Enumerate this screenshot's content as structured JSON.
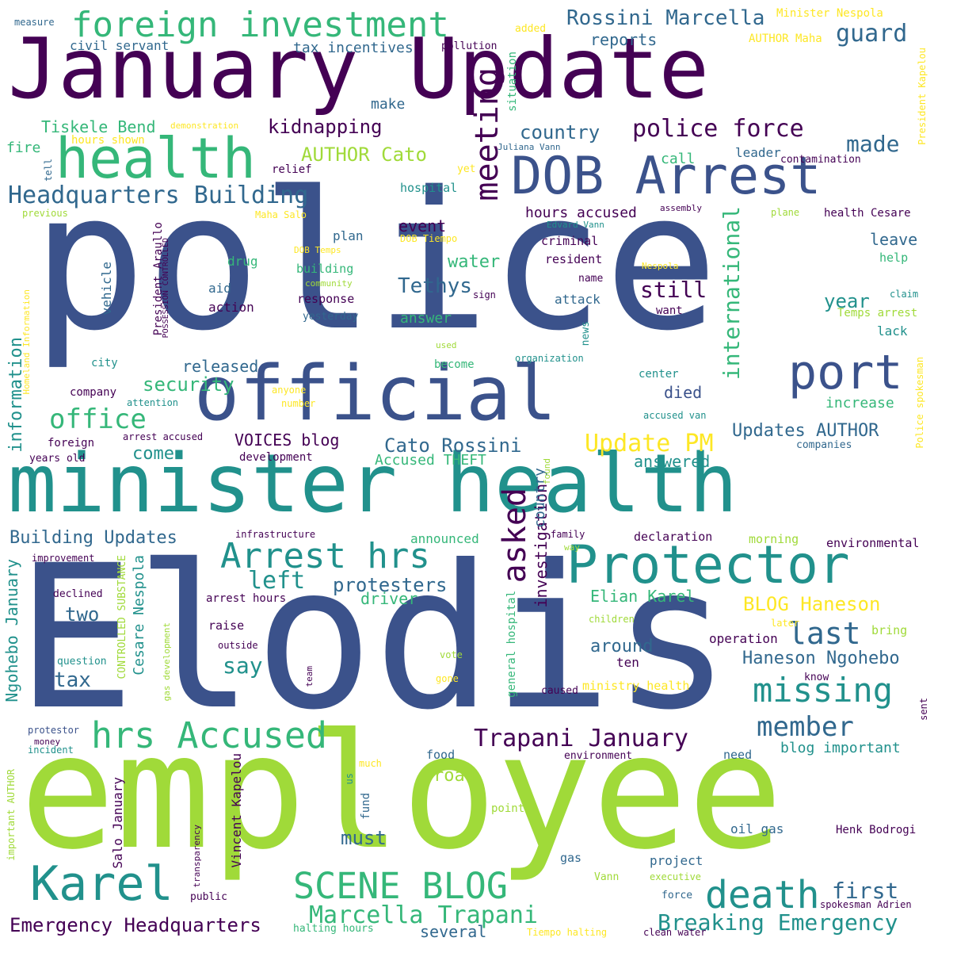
{
  "palette": {
    "deep_purple": "#440154",
    "indigo": "#3b528b",
    "blue": "#31688e",
    "teal": "#21918c",
    "green": "#35b779",
    "lime": "#a0da39",
    "yellow": "#fde725"
  },
  "words": [
    {
      "text": "police",
      "color": "#3b528b"
    },
    {
      "text": "Elodis",
      "color": "#3b528b"
    },
    {
      "text": "employee",
      "color": "#a0da39"
    },
    {
      "text": "January Update",
      "color": "#440154"
    },
    {
      "text": "minister health",
      "color": "#21918c"
    },
    {
      "text": "official",
      "color": "#3b528b"
    },
    {
      "text": "DOB Arrest",
      "color": "#3b528b"
    },
    {
      "text": "health",
      "color": "#35b779"
    },
    {
      "text": "Protector",
      "color": "#21918c"
    },
    {
      "text": "foreign investment",
      "color": "#35b779"
    },
    {
      "text": "port",
      "color": "#3b528b"
    },
    {
      "text": "Karel",
      "color": "#21918c"
    },
    {
      "text": "hrs Accused",
      "color": "#35b779"
    },
    {
      "text": "death",
      "color": "#21918c"
    },
    {
      "text": "SCENE BLOG",
      "color": "#35b779"
    },
    {
      "text": "missing",
      "color": "#21918c"
    },
    {
      "text": "Arrest hrs",
      "color": "#21918c"
    },
    {
      "text": "meeting",
      "color": "#440154"
    },
    {
      "text": "asked",
      "color": "#440154"
    },
    {
      "text": "international",
      "color": "#35b779"
    },
    {
      "text": "office",
      "color": "#35b779"
    },
    {
      "text": "Headquarters Building",
      "color": "#31688e"
    },
    {
      "text": "police force",
      "color": "#440154"
    },
    {
      "text": "Rossini Marcella",
      "color": "#31688e"
    },
    {
      "text": "guard",
      "color": "#31688e"
    },
    {
      "text": "member",
      "color": "#31688e"
    },
    {
      "text": "last",
      "color": "#31688e"
    },
    {
      "text": "Trapani January",
      "color": "#440154"
    },
    {
      "text": "Marcella Trapani",
      "color": "#35b779"
    },
    {
      "text": "Breaking Emergency",
      "color": "#21918c"
    },
    {
      "text": "Emergency Headquarters",
      "color": "#440154"
    },
    {
      "text": "first",
      "color": "#31688e"
    },
    {
      "text": "Update PM",
      "color": "#fde725"
    },
    {
      "text": "Haneson Ngohebo",
      "color": "#31688e"
    },
    {
      "text": "BLOG Haneson",
      "color": "#fde725"
    },
    {
      "text": "Cato Rossini",
      "color": "#31688e"
    },
    {
      "text": "VOICES blog",
      "color": "#440154"
    },
    {
      "text": "Updates AUTHOR",
      "color": "#31688e"
    },
    {
      "text": "left",
      "color": "#21918c"
    },
    {
      "text": "protesters",
      "color": "#31688e"
    },
    {
      "text": "security",
      "color": "#35b779"
    },
    {
      "text": "Building Updates",
      "color": "#31688e"
    },
    {
      "text": "information",
      "color": "#21918c"
    },
    {
      "text": "Ngohebo January",
      "color": "#21918c"
    },
    {
      "text": "Tethys",
      "color": "#31688e"
    },
    {
      "text": "still",
      "color": "#440154"
    },
    {
      "text": "year",
      "color": "#21918c"
    },
    {
      "text": "made",
      "color": "#31688e"
    },
    {
      "text": "country",
      "color": "#31688e"
    },
    {
      "text": "kidnapping",
      "color": "#440154"
    },
    {
      "text": "AUTHOR Cato",
      "color": "#a0da39"
    },
    {
      "text": "Tiskele Bend",
      "color": "#35b779"
    },
    {
      "text": "tax incentives",
      "color": "#31688e"
    },
    {
      "text": "reports",
      "color": "#31688e"
    },
    {
      "text": "water",
      "color": "#35b779"
    },
    {
      "text": "event",
      "color": "#440154"
    },
    {
      "text": "hours accused",
      "color": "#440154"
    },
    {
      "text": "died",
      "color": "#3b528b"
    },
    {
      "text": "increase",
      "color": "#35b779"
    },
    {
      "text": "come",
      "color": "#21918c"
    },
    {
      "text": "released",
      "color": "#31688e"
    },
    {
      "text": "answered",
      "color": "#21918c"
    },
    {
      "text": "Accused THEFT",
      "color": "#35b779"
    },
    {
      "text": "investigation",
      "color": "#440154"
    },
    {
      "text": "country ",
      "color": "#31688e"
    },
    {
      "text": "two",
      "color": "#31688e"
    },
    {
      "text": "tax",
      "color": "#31688e"
    },
    {
      "text": "say",
      "color": "#21918c"
    },
    {
      "text": "driver",
      "color": "#35b779"
    },
    {
      "text": "Elian Karel",
      "color": "#35b779"
    },
    {
      "text": "around",
      "color": "#31688e"
    },
    {
      "text": "ten",
      "color": "#440154"
    },
    {
      "text": "operation",
      "color": "#440154"
    },
    {
      "text": "must",
      "color": "#31688e"
    },
    {
      "text": "road",
      "color": "#a0da39"
    },
    {
      "text": "several",
      "color": "#31688e"
    },
    {
      "text": "blog important",
      "color": "#21918c"
    },
    {
      "text": "Cesare Nespola",
      "color": "#21918c"
    },
    {
      "text": "Salo January",
      "color": "#440154"
    },
    {
      "text": "Vincent Kapelou",
      "color": "#440154"
    },
    {
      "text": "general hospital",
      "color": "#35b779"
    },
    {
      "text": "CONTROLLED SUBSTANCE",
      "color": "#a0da39"
    },
    {
      "text": "President Araullo",
      "color": "#440154"
    },
    {
      "text": "POSSESSION CONTROLLED",
      "color": "#440154"
    },
    {
      "text": "Minister Nespola",
      "color": "#fde725"
    },
    {
      "text": "AUTHOR Maha",
      "color": "#fde725"
    },
    {
      "text": "President Kapelou",
      "color": "#fde725"
    },
    {
      "text": "Police spokesman",
      "color": "#fde725"
    },
    {
      "text": "measure",
      "color": "#31688e"
    },
    {
      "text": "civil servant",
      "color": "#31688e"
    },
    {
      "text": "pollution",
      "color": "#440154"
    },
    {
      "text": "added",
      "color": "#fde725"
    },
    {
      "text": "make",
      "color": "#31688e"
    },
    {
      "text": "situation",
      "color": "#35b779"
    },
    {
      "text": "demonstration",
      "color": "#fde725"
    },
    {
      "text": "hours shown",
      "color": "#fde725"
    },
    {
      "text": "fire",
      "color": "#35b779"
    },
    {
      "text": "relief",
      "color": "#440154"
    },
    {
      "text": "hospital",
      "color": "#21918c"
    },
    {
      "text": "yet",
      "color": "#fde725"
    },
    {
      "text": "call",
      "color": "#35b779"
    },
    {
      "text": "leader",
      "color": "#31688e"
    },
    {
      "text": "contamination",
      "color": "#440154"
    },
    {
      "text": "Juliana Vann",
      "color": "#31688e"
    },
    {
      "text": "tell",
      "color": "#31688e"
    },
    {
      "text": "previous",
      "color": "#a0da39"
    },
    {
      "text": "Maha Salo",
      "color": "#fde725"
    },
    {
      "text": "assembly",
      "color": "#440154"
    },
    {
      "text": "plane",
      "color": "#a0da39"
    },
    {
      "text": "health Cesare",
      "color": "#440154"
    },
    {
      "text": "plan",
      "color": "#31688e"
    },
    {
      "text": "DOB Tiempo",
      "color": "#fde725"
    },
    {
      "text": "criminal",
      "color": "#440154"
    },
    {
      "text": "leave",
      "color": "#31688e"
    },
    {
      "text": "DOB Temps",
      "color": "#fde725"
    },
    {
      "text": "drug",
      "color": "#35b779"
    },
    {
      "text": "building",
      "color": "#35b779"
    },
    {
      "text": "resident",
      "color": "#440154"
    },
    {
      "text": "help",
      "color": "#35b779"
    },
    {
      "text": "Nespola",
      "color": "#fde725"
    },
    {
      "text": "vehicle",
      "color": "#31688e"
    },
    {
      "text": "community",
      "color": "#a0da39"
    },
    {
      "text": "aid",
      "color": "#31688e"
    },
    {
      "text": "sign",
      "color": "#440154"
    },
    {
      "text": "name",
      "color": "#440154"
    },
    {
      "text": "claim",
      "color": "#21918c"
    },
    {
      "text": "action",
      "color": "#440154"
    },
    {
      "text": "response",
      "color": "#440154"
    },
    {
      "text": "attack",
      "color": "#31688e"
    },
    {
      "text": "want",
      "color": "#440154"
    },
    {
      "text": "Temps arrest",
      "color": "#a0da39"
    },
    {
      "text": "yesterday",
      "color": "#31688e"
    },
    {
      "text": "answer",
      "color": "#35b779"
    },
    {
      "text": "news",
      "color": "#21918c"
    },
    {
      "text": "lack",
      "color": "#21918c"
    },
    {
      "text": "Homeland Information",
      "color": "#fde725"
    },
    {
      "text": "used",
      "color": "#a0da39"
    },
    {
      "text": "city",
      "color": "#21918c"
    },
    {
      "text": "become",
      "color": "#35b779"
    },
    {
      "text": "organization",
      "color": "#21918c"
    },
    {
      "text": "center",
      "color": "#21918c"
    },
    {
      "text": "company",
      "color": "#440154"
    },
    {
      "text": "anyone",
      "color": "#fde725"
    },
    {
      "text": "attention",
      "color": "#21918c"
    },
    {
      "text": "number",
      "color": "#fde725"
    },
    {
      "text": "accused van",
      "color": "#21918c"
    },
    {
      "text": "foreign",
      "color": "#440154"
    },
    {
      "text": "years old",
      "color": "#440154"
    },
    {
      "text": "arrest accused",
      "color": "#440154"
    },
    {
      "text": "development",
      "color": "#440154"
    },
    {
      "text": "companies",
      "color": "#31688e"
    },
    {
      "text": "found",
      "color": "#a0da39"
    },
    {
      "text": "infrastructure",
      "color": "#440154"
    },
    {
      "text": "announced",
      "color": "#35b779"
    },
    {
      "text": "family",
      "color": "#440154"
    },
    {
      "text": "way",
      "color": "#a0da39"
    },
    {
      "text": "declaration",
      "color": "#440154"
    },
    {
      "text": "morning",
      "color": "#a0da39"
    },
    {
      "text": "environmental",
      "color": "#440154"
    },
    {
      "text": "improvement",
      "color": "#440154"
    },
    {
      "text": "declined",
      "color": "#440154"
    },
    {
      "text": "arrest hours",
      "color": "#440154"
    },
    {
      "text": "children",
      "color": "#a0da39"
    },
    {
      "text": "raise",
      "color": "#440154"
    },
    {
      "text": "later",
      "color": "#fde725"
    },
    {
      "text": "bring",
      "color": "#a0da39"
    },
    {
      "text": "outside",
      "color": "#440154"
    },
    {
      "text": "gas development",
      "color": "#a0da39"
    },
    {
      "text": "question",
      "color": "#21918c"
    },
    {
      "text": "vote",
      "color": "#a0da39"
    },
    {
      "text": "gone",
      "color": "#fde725"
    },
    {
      "text": "team",
      "color": "#440154"
    },
    {
      "text": "caused",
      "color": "#440154"
    },
    {
      "text": "ministry health",
      "color": "#fde725"
    },
    {
      "text": "know",
      "color": "#440154"
    },
    {
      "text": "sent",
      "color": "#440154"
    },
    {
      "text": "protestor",
      "color": "#3b528b"
    },
    {
      "text": "money",
      "color": "#440154"
    },
    {
      "text": "incident",
      "color": "#21918c"
    },
    {
      "text": "food",
      "color": "#31688e"
    },
    {
      "text": "environment",
      "color": "#440154"
    },
    {
      "text": "need",
      "color": "#31688e"
    },
    {
      "text": "much",
      "color": "#fde725"
    },
    {
      "text": "us",
      "color": "#21918c"
    },
    {
      "text": "fund",
      "color": "#31688e"
    },
    {
      "text": "important AUTHOR",
      "color": "#a0da39"
    },
    {
      "text": "transparency",
      "color": "#440154"
    },
    {
      "text": "point",
      "color": "#a0da39"
    },
    {
      "text": "oil gas",
      "color": "#31688e"
    },
    {
      "text": "Henk Bodrogi",
      "color": "#440154"
    },
    {
      "text": "gas",
      "color": "#31688e"
    },
    {
      "text": "project",
      "color": "#31688e"
    },
    {
      "text": "Vann",
      "color": "#a0da39"
    },
    {
      "text": "executive",
      "color": "#a0da39"
    },
    {
      "text": "public",
      "color": "#440154"
    },
    {
      "text": "force",
      "color": "#31688e"
    },
    {
      "text": "spokesman Adrien",
      "color": "#440154"
    },
    {
      "text": "halting hours",
      "color": "#35b779"
    },
    {
      "text": "Tiempo halting",
      "color": "#fde725"
    },
    {
      "text": "clean water",
      "color": "#440154"
    },
    {
      "text": "Edvard Vann",
      "color": "#21918c"
    }
  ]
}
